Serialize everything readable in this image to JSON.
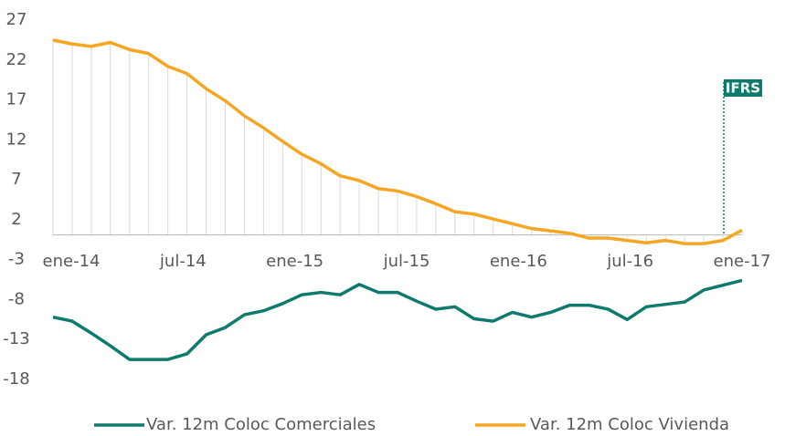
{
  "chart_data": {
    "type": "line",
    "categories": [
      "ene-14",
      null,
      null,
      null,
      null,
      null,
      "jul-14",
      null,
      null,
      null,
      null,
      null,
      "ene-15",
      null,
      null,
      null,
      null,
      null,
      "jul-15",
      null,
      null,
      null,
      null,
      null,
      "ene-16",
      null,
      null,
      null,
      null,
      null,
      "jul-16",
      null,
      null,
      null,
      null,
      null,
      "ene-17"
    ],
    "series": [
      {
        "name": "Var. 12m Coloc Comerciales",
        "color": "#0e7a6e",
        "values": [
          -10.2,
          -10.7,
          -12.2,
          -13.8,
          -15.5,
          -15.5,
          -15.5,
          -14.8,
          -12.4,
          -11.5,
          -9.9,
          -9.4,
          -8.5,
          -7.4,
          -7.1,
          -7.4,
          -6.1,
          -7.1,
          -7.1,
          -8.2,
          -9.2,
          -8.9,
          -10.4,
          -10.7,
          -9.6,
          -10.2,
          -9.6,
          -8.7,
          -8.7,
          -9.2,
          -10.5,
          -8.9,
          -8.6,
          -8.3,
          -6.8,
          -6.2,
          -5.6
        ]
      },
      {
        "name": "Var. 12m Coloc Vivienda",
        "color": "#f5a623",
        "values": [
          24.5,
          24.0,
          23.7,
          24.2,
          23.3,
          22.8,
          21.2,
          20.3,
          18.4,
          16.9,
          15.0,
          13.5,
          11.8,
          10.2,
          9.0,
          7.5,
          6.9,
          5.9,
          5.6,
          4.9,
          4.0,
          3.0,
          2.7,
          2.1,
          1.5,
          0.9,
          0.6,
          0.3,
          -0.3,
          -0.3,
          -0.6,
          -0.9,
          -0.6,
          -1.0,
          -1.0,
          -0.6,
          0.7
        ]
      }
    ],
    "ylim": [
      -18,
      27
    ],
    "yticks": [
      -18,
      -13,
      -8,
      -3,
      2,
      7,
      12,
      17,
      22,
      27
    ],
    "annotation": "IFRS",
    "drop_lines": true,
    "legend": "bottom"
  }
}
